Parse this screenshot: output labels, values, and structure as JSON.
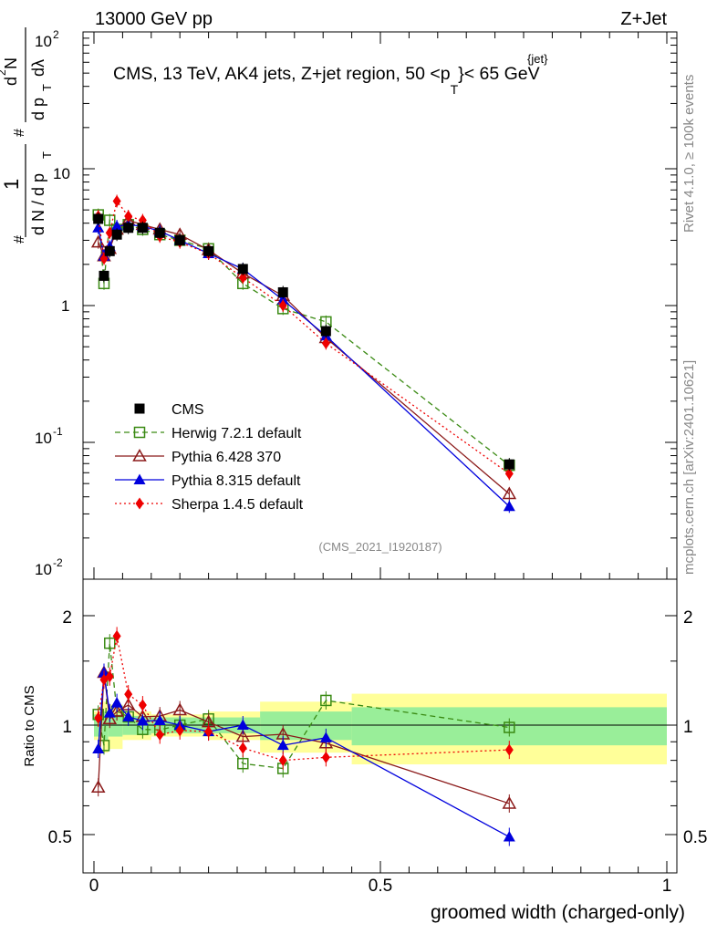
{
  "header": {
    "left": "13000 GeV pp",
    "right": "Z+Jet",
    "annotation": "CMS, 13 TeV, AK4 jets, Z+jet region, 50 <p",
    "annotation_sup": "{jet}",
    "annotation_sub": "T",
    "annotation_tail": "}< 65 GeV",
    "analysis_id": "(CMS_2021_I1920187)",
    "side_top": "Rivet 4.1.0, ≥ 100k events",
    "side_bottom": "mcplots.cern.ch [arXiv:2401.10621]"
  },
  "axes": {
    "xlabel": "groomed width (charged-only)",
    "ylabel_ratio": "Ratio to CMS",
    "ylabel_main_parts": [
      "#",
      "1",
      "d N / d p",
      "T",
      "#",
      "d",
      "2",
      "N",
      "d p",
      "T",
      "dλ"
    ],
    "x_ticks": [
      "0",
      "0.5",
      "1"
    ],
    "y_main_ticks": [
      "10",
      "-2",
      "10",
      "-1",
      "1",
      "10",
      "10",
      "2"
    ],
    "y_ratio_ticks": [
      "0.5",
      "1",
      "2"
    ]
  },
  "chart_data": {
    "type": "line",
    "xlim": [
      0,
      1
    ],
    "main_ylim_log": [
      0.01,
      100
    ],
    "ratio_ylim_log": [
      0.4,
      2.4
    ],
    "x": [
      0.0075,
      0.0175,
      0.0275,
      0.04,
      0.06,
      0.085,
      0.115,
      0.15,
      0.2,
      0.26,
      0.33,
      0.405,
      0.725
    ],
    "series": [
      {
        "name": "CMS",
        "color": "#000000",
        "marker": "square",
        "line": "none",
        "values": [
          4.3,
          1.65,
          2.5,
          3.3,
          3.7,
          3.7,
          3.4,
          3.0,
          2.5,
          1.85,
          1.25,
          0.65,
          0.069
        ]
      },
      {
        "name": "Herwig 7.2.1 default",
        "color": "#3a8a13",
        "marker": "open-square",
        "line": "dashed",
        "values": [
          4.6,
          1.45,
          4.2,
          3.6,
          3.9,
          3.6,
          3.3,
          3.0,
          2.6,
          1.45,
          0.95,
          0.76,
          0.068
        ]
      },
      {
        "name": "Pythia 6.428 370",
        "color": "#8b1a1a",
        "marker": "open-triangle",
        "line": "solid",
        "values": [
          2.9,
          2.3,
          2.6,
          3.6,
          4.2,
          3.9,
          3.6,
          3.3,
          2.55,
          1.72,
          1.18,
          0.58,
          0.042
        ]
      },
      {
        "name": "Pythia 8.315 default",
        "color": "#0000dd",
        "marker": "triangle",
        "line": "solid",
        "values": [
          3.7,
          2.3,
          2.7,
          3.8,
          3.9,
          3.8,
          3.5,
          3.0,
          2.4,
          1.85,
          1.1,
          0.6,
          0.034
        ]
      },
      {
        "name": "Sherpa 1.4.5 default",
        "color": "#ee0000",
        "marker": "diamond",
        "line": "dotted",
        "values": [
          4.5,
          2.2,
          3.4,
          5.8,
          4.5,
          4.2,
          3.2,
          2.9,
          2.4,
          1.6,
          1.0,
          0.53,
          0.059
        ]
      }
    ],
    "band": {
      "x_edges": [
        0,
        0.015,
        0.025,
        0.05,
        0.1,
        0.2,
        0.29,
        0.45,
        1.0
      ],
      "stat_halfwidth": [
        0.07,
        0.09,
        0.07,
        0.06,
        0.05,
        0.05,
        0.09,
        0.12,
        0.11
      ],
      "total_halfwidth": [
        0.09,
        0.16,
        0.14,
        0.09,
        0.07,
        0.09,
        0.16,
        0.22,
        0.21
      ]
    }
  }
}
